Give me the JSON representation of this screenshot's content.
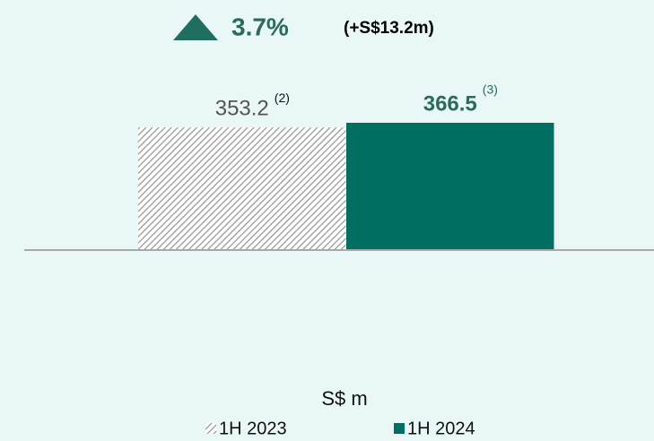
{
  "chart_data": {
    "type": "bar",
    "categories": [
      null
    ],
    "series": [
      {
        "name": "1H 2023",
        "color": "#9a9a9a",
        "pattern": "hatch",
        "values": [
          353.2
        ]
      },
      {
        "name": "1H 2024",
        "color": "#006e61",
        "values": [
          366.5
        ]
      }
    ],
    "value_footnotes": [
      "(2)",
      "(3)"
    ],
    "annotations": {
      "change_percent": "3.7%",
      "change_amount": "(+S$13.2m)"
    },
    "y_label": "S$ m",
    "ylim": [
      0,
      600
    ]
  }
}
